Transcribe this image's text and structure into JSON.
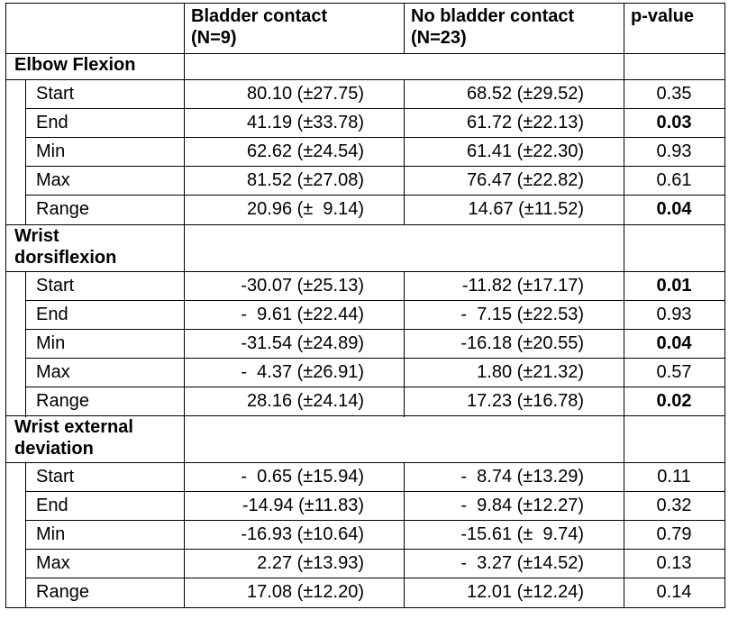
{
  "headers": {
    "col1": "",
    "bladder": "Bladder contact\n(N=9)",
    "nobladder": "No bladder contact\n(N=23)",
    "pvalue": "p-value"
  },
  "sections": [
    {
      "title": "Elbow Flexion",
      "rows": [
        {
          "label": "Start",
          "bladder": "80.10 (±27.75)",
          "nobladder": "68.52 (±29.52)",
          "p": "0.35",
          "sig": false
        },
        {
          "label": "End",
          "bladder": "41.19 (±33.78)",
          "nobladder": "61.72 (±22.13)",
          "p": "0.03",
          "sig": true
        },
        {
          "label": "Min",
          "bladder": "62.62 (±24.54)",
          "nobladder": "61.41 (±22.30)",
          "p": "0.93",
          "sig": false
        },
        {
          "label": "Max",
          "bladder": "81.52 (±27.08)",
          "nobladder": "76.47 (±22.82)",
          "p": "0.61",
          "sig": false
        },
        {
          "label": "Range",
          "bladder": "20.96 (±  9.14)",
          "nobladder": "14.67 (±11.52)",
          "p": "0.04",
          "sig": true
        }
      ]
    },
    {
      "title": "Wrist\ndorsiflexion",
      "rows": [
        {
          "label": "Start",
          "bladder": "-30.07 (±25.13)",
          "nobladder": "-11.82 (±17.17)",
          "p": "0.01",
          "sig": true
        },
        {
          "label": "End",
          "bladder": "-  9.61 (±22.44)",
          "nobladder": "-  7.15 (±22.53)",
          "p": "0.93",
          "sig": false
        },
        {
          "label": "Min",
          "bladder": "-31.54 (±24.89)",
          "nobladder": "-16.18 (±20.55)",
          "p": "0.04",
          "sig": true
        },
        {
          "label": "Max",
          "bladder": "-  4.37 (±26.91)",
          "nobladder": "1.80 (±21.32)",
          "p": "0.57",
          "sig": false
        },
        {
          "label": "Range",
          "bladder": "28.16 (±24.14)",
          "nobladder": "17.23 (±16.78)",
          "p": "0.02",
          "sig": true
        }
      ]
    },
    {
      "title": "Wrist external\ndeviation",
      "rows": [
        {
          "label": "Start",
          "bladder": "-  0.65 (±15.94)",
          "nobladder": "-  8.74 (±13.29)",
          "p": "0.11",
          "sig": false
        },
        {
          "label": "End",
          "bladder": "-14.94 (±11.83)",
          "nobladder": "-  9.84 (±12.27)",
          "p": "0.32",
          "sig": false
        },
        {
          "label": "Min",
          "bladder": "-16.93 (±10.64)",
          "nobladder": "-15.61 (±  9.74)",
          "p": "0.79",
          "sig": false
        },
        {
          "label": "Max",
          "bladder": "2.27 (±13.93)",
          "nobladder": "-  3.27 (±14.52)",
          "p": "0.13",
          "sig": false
        },
        {
          "label": "Range",
          "bladder": "17.08 (±12.20)",
          "nobladder": "12.01 (±12.24)",
          "p": "0.14",
          "sig": false
        }
      ]
    }
  ]
}
